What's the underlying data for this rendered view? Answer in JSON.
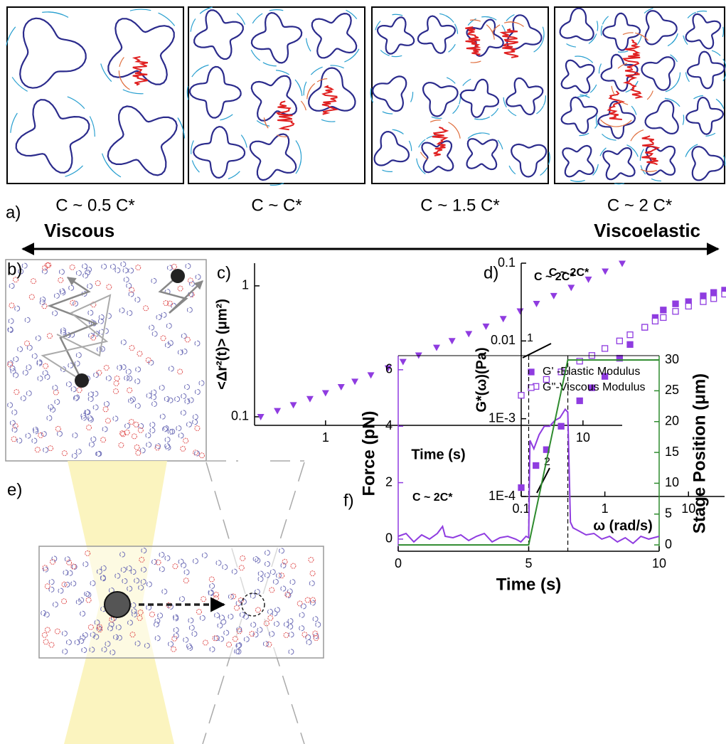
{
  "figure": {
    "panel_labels": [
      "a)",
      "b)",
      "c)",
      "d)",
      "e)",
      "f)"
    ],
    "concentrations": [
      "C ~ 0.5 C*",
      "C ~  C*",
      "C ~  1.5 C*",
      "C ~  2 C*"
    ],
    "regimes": [
      "Viscous",
      "Viscoelastic"
    ]
  },
  "chart_data": [
    {
      "type": "scatter",
      "log_x": true,
      "log_y": true,
      "annotation": "C ~ 2C*",
      "xlabel": "Time (s)",
      "ylabel": "<Δr²(t)> (μm²)",
      "xlim": [
        0.53,
        14.2
      ],
      "ylim": [
        0.086,
        1.49
      ],
      "xticks": [
        1,
        10
      ],
      "yticks": [
        0.1,
        1
      ],
      "series": [
        {
          "color": "#8f3ce0",
          "marker": "triangle-down",
          "x": [
            0.56,
            0.65,
            0.75,
            0.87,
            1.0,
            1.15,
            1.3,
            1.5,
            1.75,
            2.0,
            2.3,
            2.7,
            3.1,
            3.6,
            4.2,
            4.9,
            5.7,
            6.6,
            7.7,
            9.0,
            10.5,
            12.2,
            14.2
          ],
          "values": [
            0.1,
            0.111,
            0.123,
            0.137,
            0.152,
            0.169,
            0.186,
            0.208,
            0.235,
            0.263,
            0.295,
            0.338,
            0.38,
            0.43,
            0.49,
            0.56,
            0.64,
            0.73,
            0.84,
            0.97,
            1.12,
            1.29,
            1.48
          ]
        }
      ]
    },
    {
      "type": "scatter",
      "log_x": true,
      "log_y": true,
      "legend": "lower right",
      "annotation": "C ~ 2C*",
      "xlabel": "ω (rad/s)",
      "ylabel": "G*(ω)(Pa)",
      "slope_labels": [
        "1",
        "2"
      ],
      "xlim": [
        0.1,
        27
      ],
      "ylim": [
        0.0001,
        0.1
      ],
      "xticks": [
        0.1,
        1,
        10
      ],
      "yticks": [
        {
          "value": 0.0001,
          "label": "1E-4"
        },
        {
          "value": 0.001,
          "label": "1E-3"
        },
        0.01,
        0.1
      ],
      "series": [
        {
          "name": "G' -Elastic Modulus",
          "color": "#8f3ce0",
          "marker": "square",
          "x": [
            0.1,
            0.15,
            0.2,
            0.3,
            0.5,
            0.7,
            1,
            1.5,
            2,
            3,
            4,
            5,
            7,
            10,
            15,
            20,
            27
          ],
          "values": [
            0.00013,
            0.00025,
            0.0004,
            0.0008,
            0.0017,
            0.0025,
            0.0035,
            0.006,
            0.009,
            0.015,
            0.02,
            0.025,
            0.03,
            0.032,
            0.038,
            0.042,
            0.045
          ]
        },
        {
          "name": "G''-Viscous Modulus",
          "color": "#8f3ce0",
          "marker": "square-open",
          "x": [
            0.1,
            0.15,
            0.2,
            0.3,
            0.5,
            0.7,
            1,
            1.5,
            2,
            3,
            4,
            5,
            7,
            10,
            15,
            20,
            27
          ],
          "values": [
            0.002,
            0.0026,
            0.0032,
            0.004,
            0.0055,
            0.0065,
            0.008,
            0.01,
            0.012,
            0.015,
            0.018,
            0.02,
            0.024,
            0.028,
            0.032,
            0.035,
            0.04
          ]
        }
      ]
    },
    {
      "type": "line",
      "annotation": "C ~ 2C*",
      "xlabel": "Time (s)",
      "ylabel": "Force (pN)",
      "y2label": "Stage Position (μm)",
      "xlim": [
        0,
        10
      ],
      "ylim": [
        -0.43,
        6.5
      ],
      "y2lim": [
        -1.03,
        30.7
      ],
      "xticks": [
        0,
        5,
        10
      ],
      "yticks": [
        0,
        2,
        4,
        6
      ],
      "y2ticks": [
        0,
        5,
        10,
        15,
        20,
        25,
        30
      ],
      "vlines": [
        5,
        6.5
      ],
      "series": [
        {
          "color": "#8f3ce0",
          "x": [
            0,
            0.3,
            0.6,
            0.9,
            1.2,
            1.5,
            1.7,
            1.8,
            2.1,
            2.4,
            2.7,
            3.0,
            3.3,
            3.6,
            3.9,
            4.2,
            4.5,
            4.7,
            4.9,
            5.0,
            5.05,
            5.2,
            5.4,
            5.6,
            5.8,
            6.0,
            6.2,
            6.4,
            6.5,
            6.55,
            6.6,
            6.7,
            6.9,
            7.2,
            7.5,
            7.8,
            8.1,
            8.4,
            8.7,
            9.0,
            9.3,
            9.6,
            10
          ],
          "values": [
            0.1,
            0.2,
            -0.1,
            0.15,
            0.0,
            0.2,
            0.45,
            0.1,
            0.05,
            0.15,
            -0.05,
            0.1,
            0.2,
            -0.1,
            0.05,
            0.1,
            0.0,
            -0.1,
            0.1,
            0.05,
            3.5,
            3.2,
            3.7,
            4.0,
            4.0,
            4.2,
            4.3,
            4.6,
            4.5,
            2.5,
            0.6,
            0.4,
            0.3,
            0.15,
            0.2,
            0.0,
            0.1,
            -0.1,
            0.05,
            -0.15,
            0.1,
            0.0,
            0.1
          ]
        },
        {
          "color": "#2e8b2e",
          "axis": "y2",
          "x": [
            0,
            5,
            6.5,
            10
          ],
          "values": [
            0,
            0,
            30,
            30
          ]
        }
      ]
    }
  ]
}
